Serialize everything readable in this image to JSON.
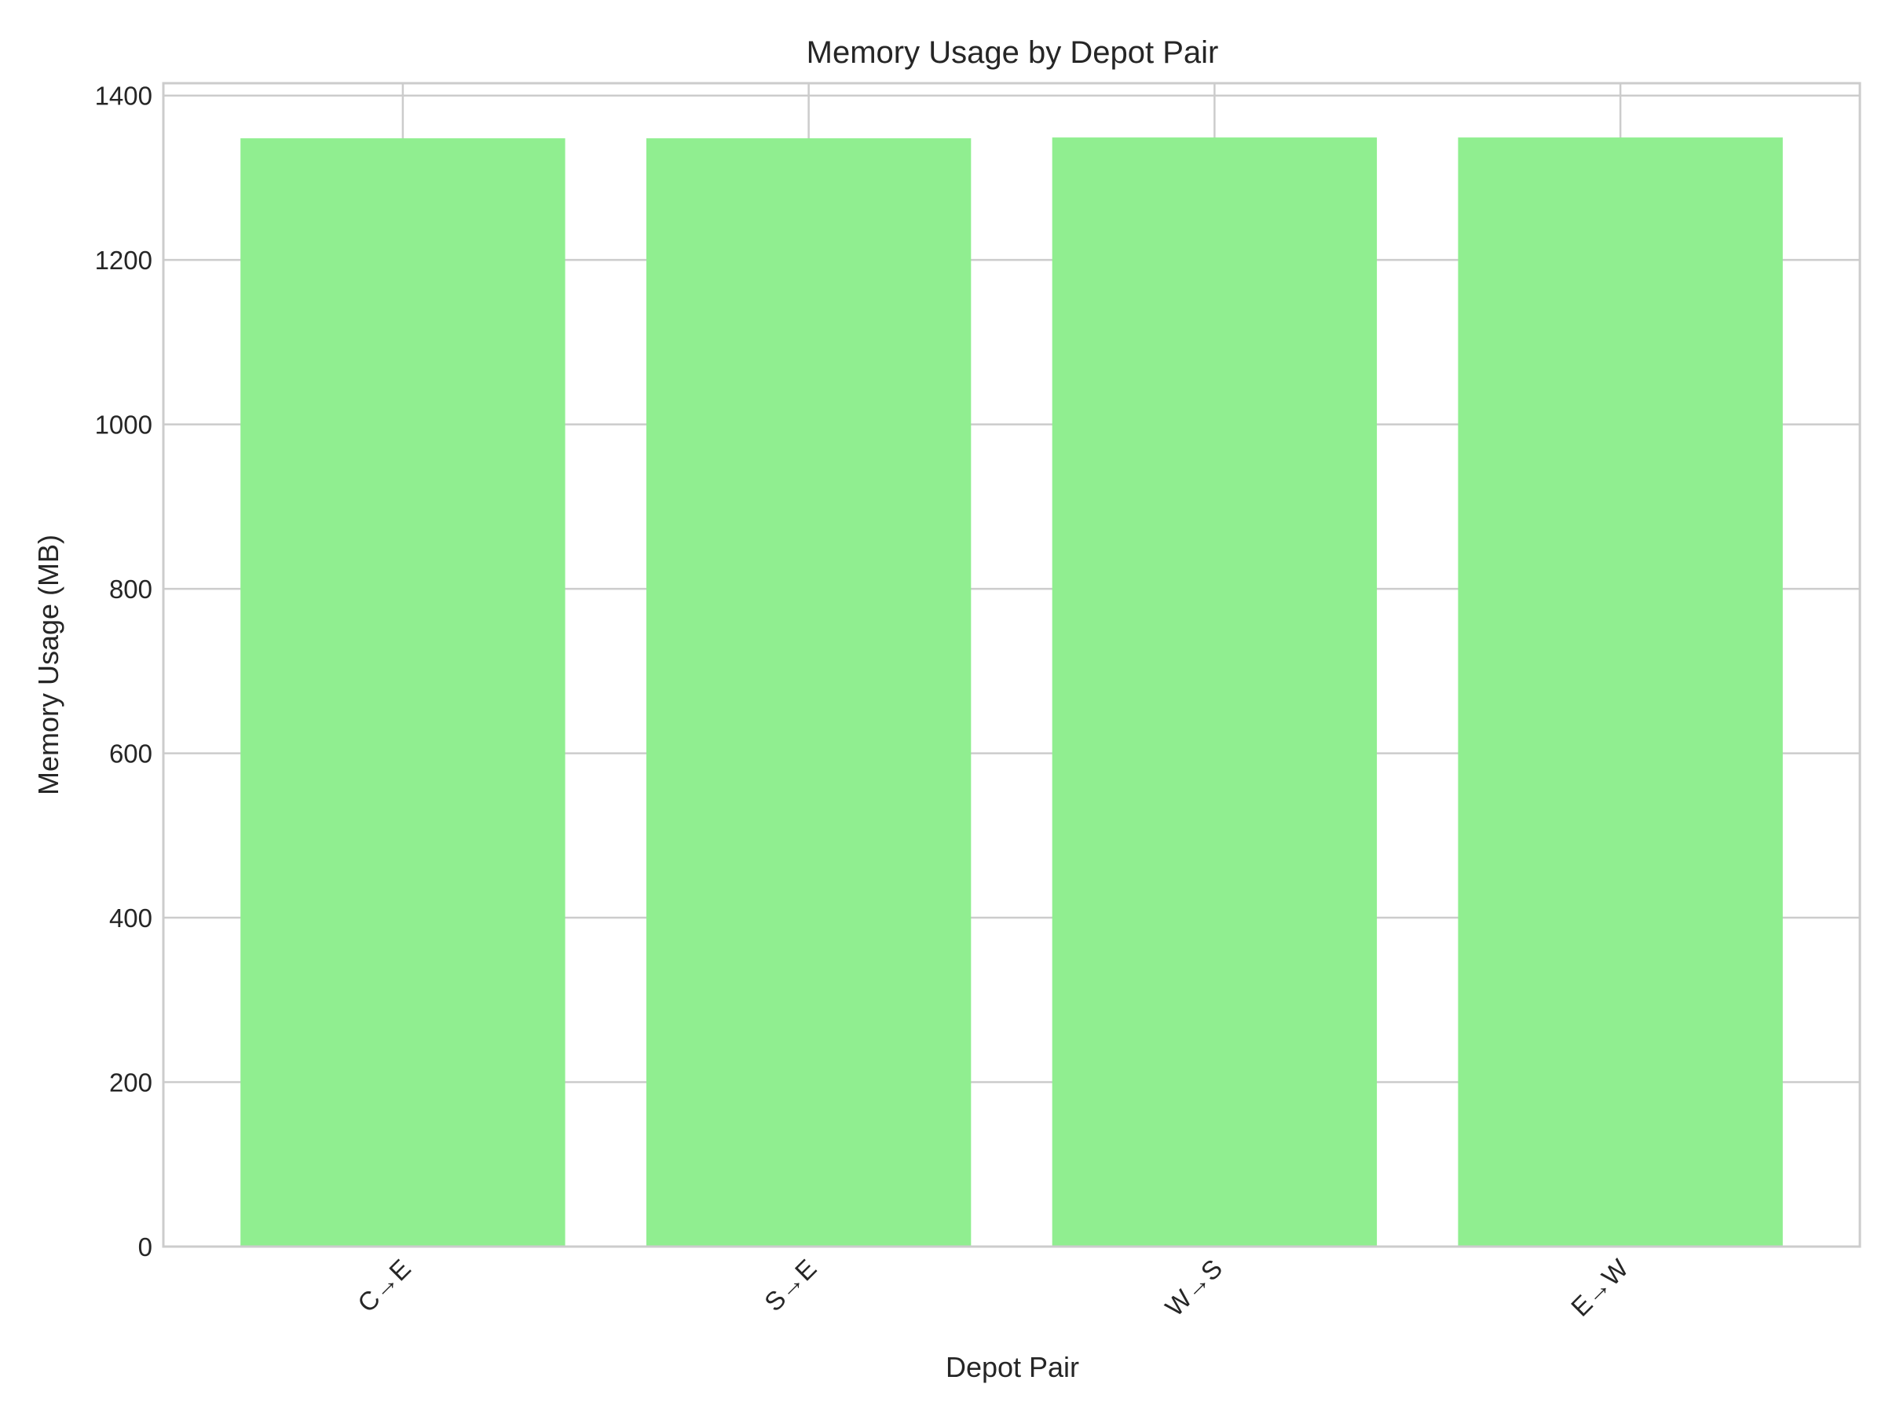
{
  "chart_data": {
    "type": "bar",
    "title": "Memory Usage by Depot Pair",
    "xlabel": "Depot Pair",
    "ylabel": "Memory Usage (MB)",
    "categories": [
      "C→E",
      "S→E",
      "W→S",
      "E→W"
    ],
    "values": [
      1348,
      1348,
      1349,
      1349
    ],
    "ylim": [
      0,
      1415
    ],
    "yticks": [
      0,
      200,
      400,
      600,
      800,
      1000,
      1200,
      1400
    ],
    "grid": true,
    "bar_color": "#90ee90"
  }
}
